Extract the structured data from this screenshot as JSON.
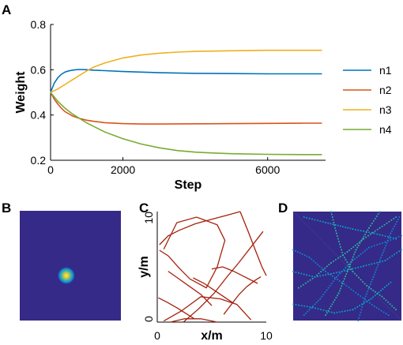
{
  "panels": {
    "a": {
      "letter": "A"
    },
    "b": {
      "letter": "B"
    },
    "c": {
      "letter": "C"
    },
    "d": {
      "letter": "D"
    }
  },
  "chart_data": [
    {
      "panel": "A",
      "type": "line",
      "xlabel": "Step",
      "ylabel": "Weight",
      "xlim": [
        0,
        7600
      ],
      "ylim": [
        0.2,
        0.8
      ],
      "xticks": [
        0,
        2000,
        6000
      ],
      "xtick_labels": [
        "0",
        "2000",
        "6000"
      ],
      "yticks": [
        0.2,
        0.4,
        0.6,
        0.8
      ],
      "ytick_labels": [
        "0.2",
        "0.4",
        "0.6",
        "0.8"
      ],
      "legend_placement": "right",
      "series": [
        {
          "name": "n1",
          "color": "#0072BD",
          "x": [
            0,
            100,
            200,
            300,
            400,
            500,
            600,
            700,
            800,
            1000,
            1200,
            1500,
            2000,
            3000,
            4000,
            5000,
            6000,
            7000,
            7500
          ],
          "y": [
            0.5,
            0.54,
            0.565,
            0.58,
            0.59,
            0.595,
            0.598,
            0.6,
            0.601,
            0.6,
            0.598,
            0.596,
            0.592,
            0.587,
            0.584,
            0.583,
            0.582,
            0.582,
            0.582
          ]
        },
        {
          "name": "n2",
          "color": "#D95319",
          "x": [
            0,
            100,
            200,
            300,
            400,
            600,
            800,
            1000,
            1200,
            1500,
            2000,
            2500,
            3000,
            4000,
            5000,
            6000,
            7000,
            7500
          ],
          "y": [
            0.5,
            0.47,
            0.448,
            0.43,
            0.415,
            0.396,
            0.385,
            0.377,
            0.372,
            0.366,
            0.362,
            0.36,
            0.36,
            0.361,
            0.362,
            0.363,
            0.364,
            0.364
          ]
        },
        {
          "name": "n3",
          "color": "#EDB120",
          "x": [
            0,
            200,
            400,
            600,
            800,
            1000,
            1200,
            1500,
            2000,
            2500,
            3000,
            3500,
            4000,
            5000,
            6000,
            7000,
            7500
          ],
          "y": [
            0.5,
            0.515,
            0.535,
            0.555,
            0.575,
            0.595,
            0.612,
            0.63,
            0.652,
            0.665,
            0.673,
            0.678,
            0.681,
            0.684,
            0.686,
            0.686,
            0.686
          ]
        },
        {
          "name": "n4",
          "color": "#77AC30",
          "x": [
            0,
            200,
            400,
            600,
            800,
            1000,
            1500,
            2000,
            2500,
            3000,
            3500,
            4000,
            4500,
            5000,
            6000,
            7000,
            7500
          ],
          "y": [
            0.5,
            0.46,
            0.43,
            0.405,
            0.385,
            0.365,
            0.325,
            0.295,
            0.272,
            0.255,
            0.243,
            0.236,
            0.232,
            0.229,
            0.226,
            0.225,
            0.225
          ]
        }
      ]
    },
    {
      "panel": "B",
      "type": "heatmap",
      "background_color": "#352A87",
      "blob_center": [
        0.46,
        0.59
      ],
      "blob_radius": 0.09,
      "colormap": [
        "#352A87",
        "#0F5CDD",
        "#1481D6",
        "#06A4CA",
        "#2EB7A4",
        "#87BF77",
        "#D1BB59",
        "#FEC832",
        "#F9FB0E"
      ]
    },
    {
      "panel": "C",
      "type": "line",
      "xlabel": "x/m",
      "ylabel": "y/m",
      "xlim": [
        0,
        10
      ],
      "ylim": [
        0,
        10
      ],
      "xticks": [
        0,
        10
      ],
      "yticks": [
        0,
        10
      ],
      "line_color": "#A4210C",
      "series": [
        {
          "x": [
            0.2,
            1.0,
            2.0,
            3.5,
            5.0,
            6.5,
            7.6
          ],
          "y": [
            7.0,
            7.8,
            8.3,
            8.9,
            9.3,
            9.7,
            10.0
          ]
        },
        {
          "x": [
            7.6,
            8.3,
            9.0,
            9.6,
            10.0
          ],
          "y": [
            10.0,
            8.3,
            6.5,
            5.0,
            4.2
          ]
        },
        {
          "x": [
            0.2,
            1.0,
            2.0,
            3.0,
            4.5,
            5.5,
            6.2,
            5.5,
            3.6,
            1.8,
            0.6
          ],
          "y": [
            6.5,
            6.0,
            4.9,
            3.9,
            3.1,
            5.0,
            7.4,
            8.8,
            9.5,
            9.0,
            6.6
          ]
        },
        {
          "x": [
            2.4,
            3.8,
            5.2,
            6.4,
            7.5,
            8.6,
            9.7
          ],
          "y": [
            0.0,
            1.2,
            2.6,
            4.1,
            5.4,
            6.8,
            8.2
          ]
        },
        {
          "x": [
            1.0,
            2.0,
            3.0,
            4.0,
            5.0
          ],
          "y": [
            4.6,
            3.9,
            3.2,
            2.5,
            1.5
          ]
        },
        {
          "x": [
            5.0,
            6.0,
            7.0,
            8.0,
            9.2
          ],
          "y": [
            4.8,
            5.0,
            4.6,
            4.1,
            3.5
          ]
        },
        {
          "x": [
            0.6,
            2.2,
            4.0,
            5.8,
            7.3,
            8.6
          ],
          "y": [
            0.1,
            1.0,
            2.3,
            2.1,
            1.6,
            0.2
          ]
        },
        {
          "x": [
            0.1,
            0.9,
            1.8,
            2.6,
            3.4
          ],
          "y": [
            2.2,
            1.8,
            1.3,
            0.8,
            0.3
          ]
        },
        {
          "x": [
            1.2,
            2.5,
            4.0,
            5.5
          ],
          "y": [
            0.0,
            0.3,
            0.3,
            0.0
          ]
        },
        {
          "x": [
            3.3,
            4.3,
            5.2,
            6.1,
            7.0
          ],
          "y": [
            4.0,
            3.5,
            2.9,
            2.3,
            1.7
          ]
        },
        {
          "x": [
            6.1,
            6.8,
            7.5,
            8.2,
            9.0,
            9.5
          ],
          "y": [
            0.7,
            1.6,
            2.5,
            3.2,
            3.8,
            4.1
          ]
        }
      ]
    },
    {
      "panel": "D",
      "type": "heatmap",
      "background_color": "#352A87",
      "trace_colors": [
        "#1481D6",
        "#06A4CA",
        "#2EB7A4"
      ],
      "traces": [
        [
          [
            0.0,
            0.35
          ],
          [
            0.15,
            0.42
          ],
          [
            0.3,
            0.55
          ],
          [
            0.45,
            0.65
          ],
          [
            0.6,
            0.76
          ],
          [
            0.75,
            0.87
          ],
          [
            0.88,
            0.95
          ]
        ],
        [
          [
            0.1,
            0.05
          ],
          [
            0.3,
            0.1
          ],
          [
            0.55,
            0.16
          ],
          [
            0.75,
            0.2
          ],
          [
            0.95,
            0.25
          ]
        ],
        [
          [
            0.05,
            0.7
          ],
          [
            0.2,
            0.6
          ],
          [
            0.35,
            0.47
          ],
          [
            0.5,
            0.37
          ],
          [
            0.65,
            0.25
          ],
          [
            0.8,
            0.15
          ],
          [
            0.95,
            0.05
          ]
        ],
        [
          [
            0.1,
            0.95
          ],
          [
            0.25,
            0.8
          ],
          [
            0.4,
            0.6
          ],
          [
            0.55,
            0.45
          ],
          [
            0.7,
            0.33
          ],
          [
            0.85,
            0.28
          ],
          [
            1.0,
            0.22
          ]
        ],
        [
          [
            0.0,
            0.55
          ],
          [
            0.2,
            0.6
          ],
          [
            0.45,
            0.55
          ],
          [
            0.65,
            0.5
          ],
          [
            0.85,
            0.45
          ],
          [
            1.0,
            0.35
          ]
        ],
        [
          [
            0.3,
            0.95
          ],
          [
            0.42,
            0.75
          ],
          [
            0.5,
            0.55
          ],
          [
            0.58,
            0.35
          ],
          [
            0.7,
            0.15
          ],
          [
            0.8,
            0.0
          ]
        ],
        [
          [
            0.6,
            1.0
          ],
          [
            0.66,
            0.8
          ],
          [
            0.74,
            0.6
          ],
          [
            0.82,
            0.4
          ],
          [
            0.9,
            0.2
          ],
          [
            0.98,
            0.05
          ]
        ],
        [
          [
            0.0,
            0.85
          ],
          [
            0.18,
            0.88
          ],
          [
            0.38,
            0.93
          ],
          [
            0.55,
            0.9
          ],
          [
            0.72,
            0.8
          ],
          [
            0.9,
            0.65
          ]
        ],
        [
          [
            0.35,
            0.0
          ],
          [
            0.4,
            0.2
          ],
          [
            0.46,
            0.4
          ],
          [
            0.55,
            0.55
          ],
          [
            0.68,
            0.68
          ],
          [
            0.82,
            0.78
          ],
          [
            0.95,
            0.9
          ]
        ]
      ]
    }
  ]
}
